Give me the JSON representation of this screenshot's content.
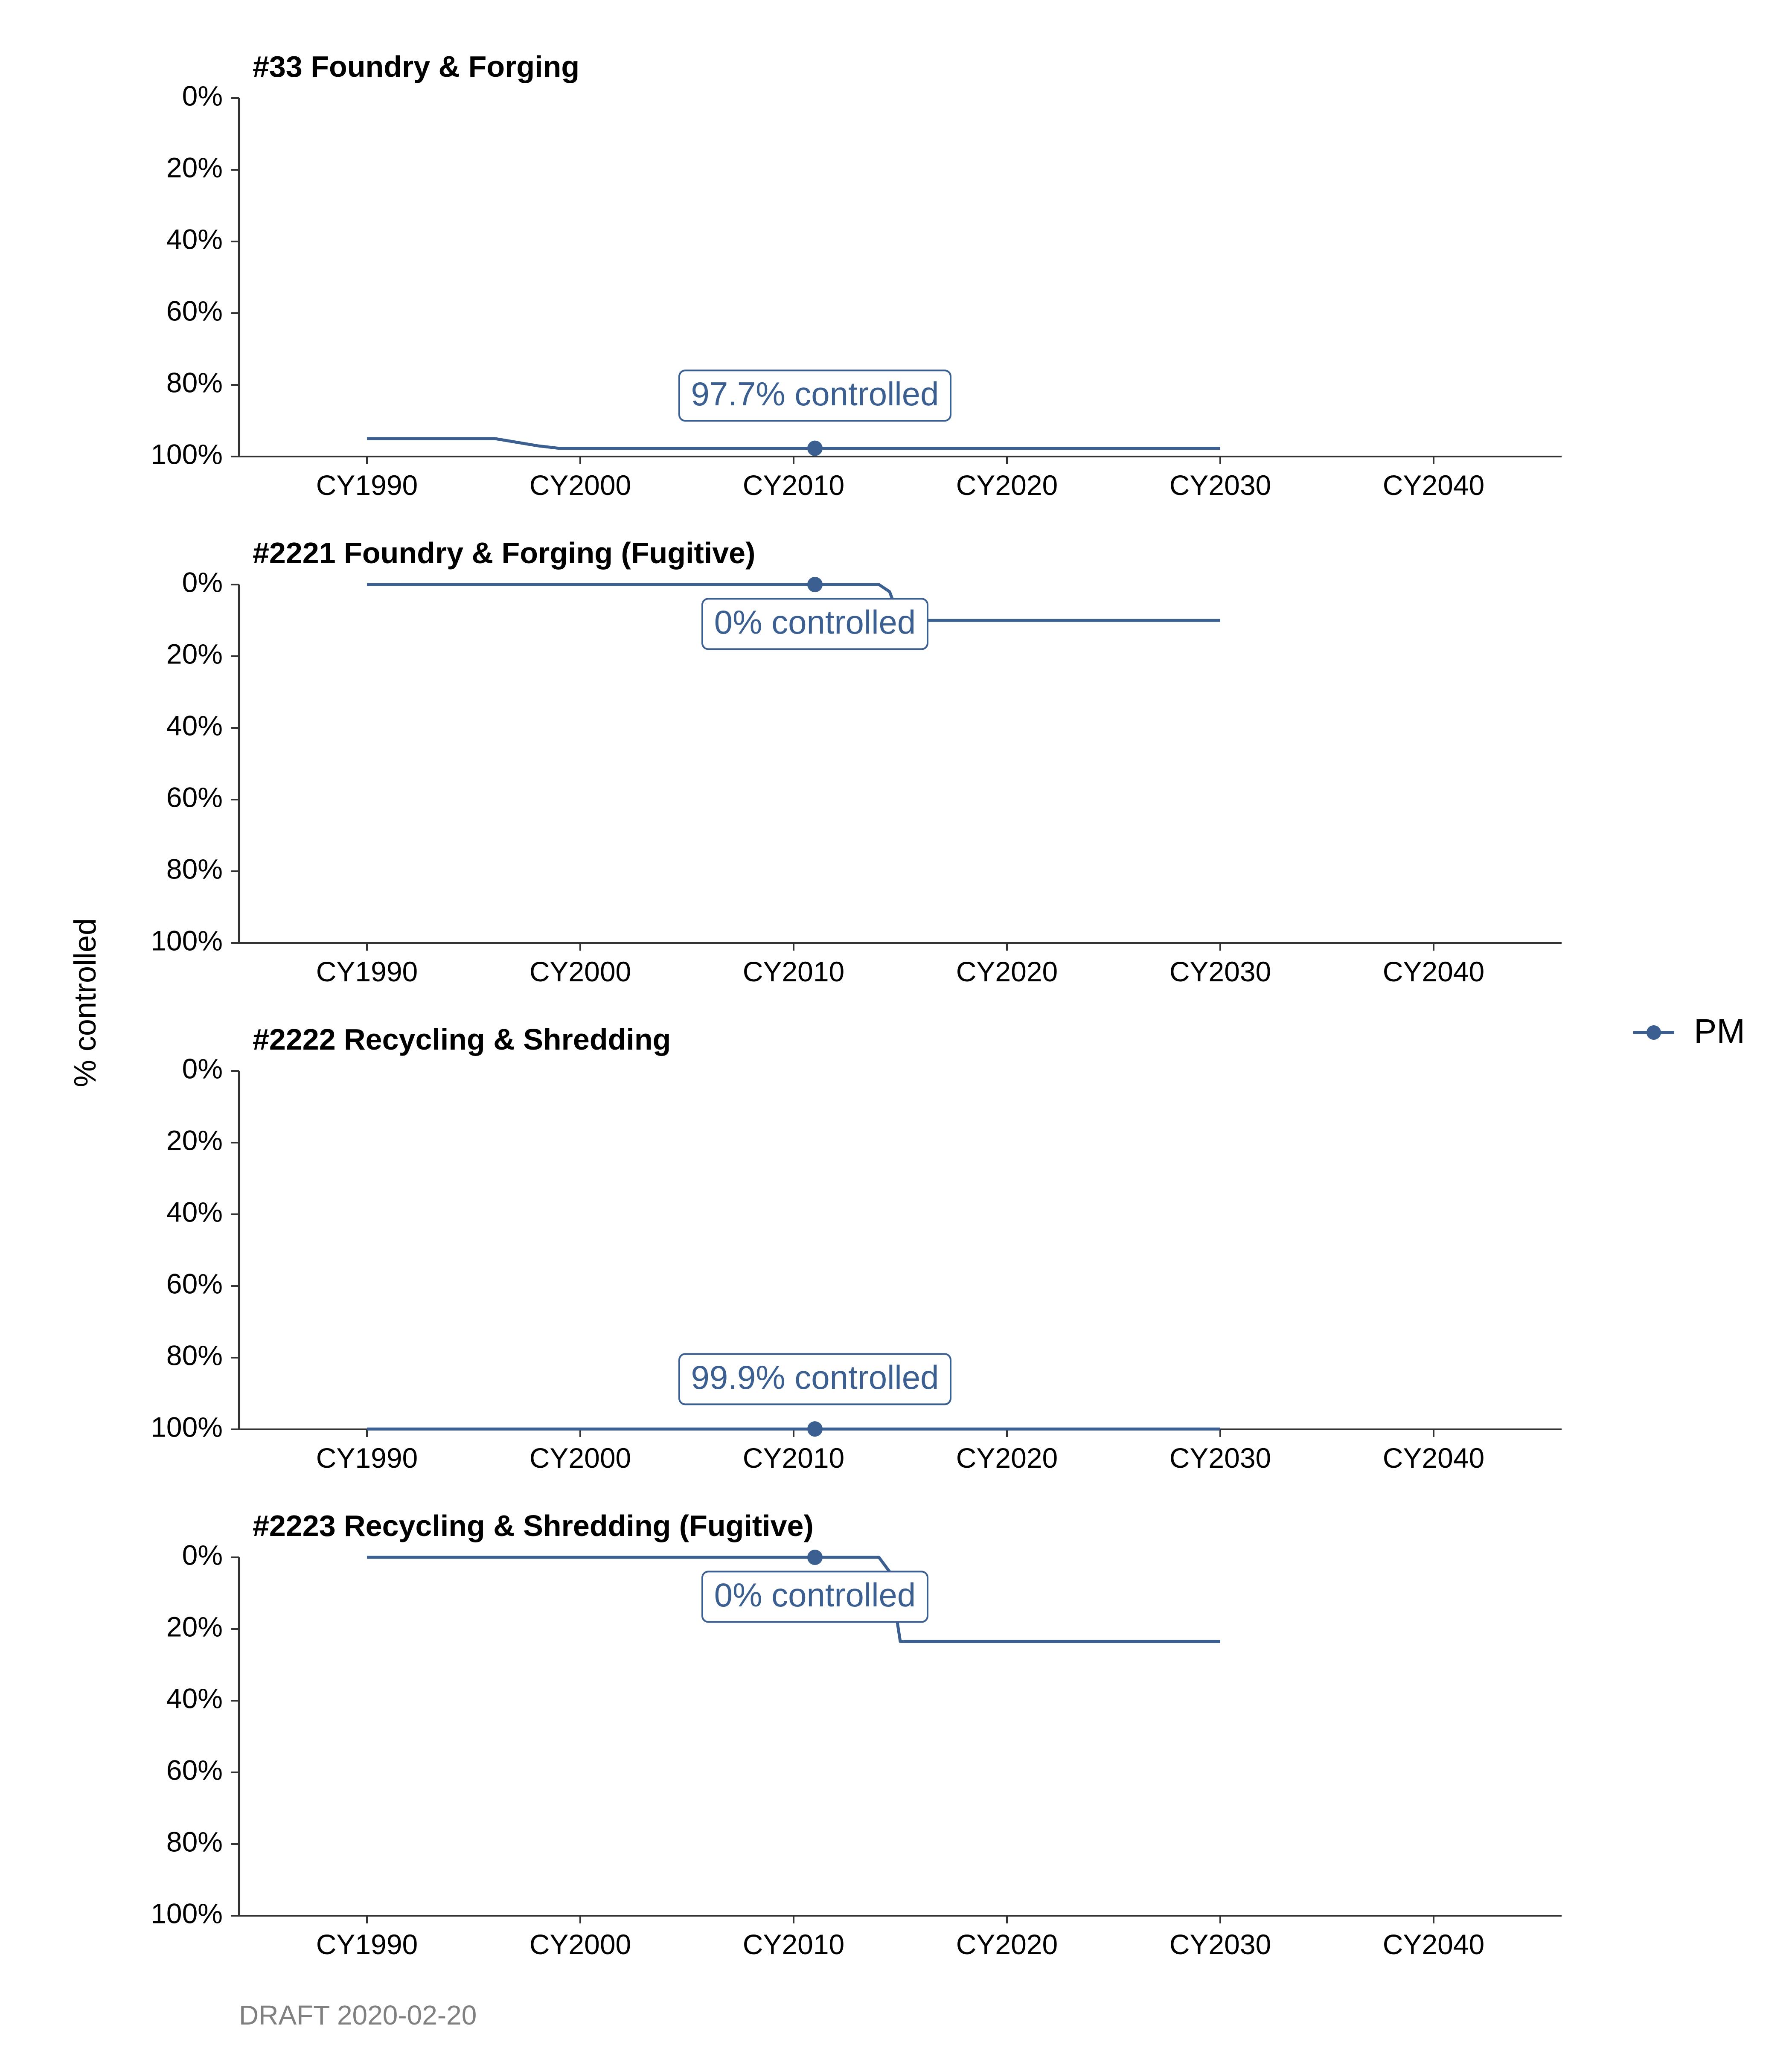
{
  "chart_data": {
    "type": "line",
    "ylabel": "% controlled",
    "caption": "DRAFT 2020-02-20",
    "legend": {
      "placement": "right",
      "entries": [
        "PM"
      ]
    },
    "colors": {
      "series": "#3b5f91",
      "axis": "#333333"
    },
    "x_ticks": [
      {
        "value": 1990,
        "label": "CY1990"
      },
      {
        "value": 2000,
        "label": "CY2000"
      },
      {
        "value": 2010,
        "label": "CY2010"
      },
      {
        "value": 2020,
        "label": "CY2020"
      },
      {
        "value": 2030,
        "label": "CY2030"
      },
      {
        "value": 2040,
        "label": "CY2040"
      }
    ],
    "y_ticks": [
      {
        "value": 0,
        "label": "0%"
      },
      {
        "value": 20,
        "label": "20%"
      },
      {
        "value": 40,
        "label": "40%"
      },
      {
        "value": 60,
        "label": "60%"
      },
      {
        "value": 80,
        "label": "80%"
      },
      {
        "value": 100,
        "label": "100%"
      }
    ],
    "xlim": [
      1984,
      2046
    ],
    "ylim": [
      0,
      100
    ],
    "y_reversed": true,
    "grid": false,
    "panels": [
      {
        "title": "#33 Foundry & Forging",
        "series": [
          {
            "name": "PM",
            "points": [
              [
                1990,
                95
              ],
              [
                1996,
                95
              ],
              [
                1998,
                97
              ],
              [
                1999,
                97.7
              ],
              [
                2030,
                97.7
              ]
            ]
          }
        ],
        "highlight": {
          "x": 2011,
          "y": 97.7
        },
        "annotation": {
          "text": "97.7% controlled",
          "x": 2011,
          "y": 83
        }
      },
      {
        "title": "#2221 Foundry & Forging (Fugitive)",
        "series": [
          {
            "name": "PM",
            "points": [
              [
                1990,
                0
              ],
              [
                2014,
                0
              ],
              [
                2014.5,
                2
              ],
              [
                2015,
                10
              ],
              [
                2030,
                10
              ]
            ]
          }
        ],
        "highlight": {
          "x": 2011,
          "y": 0
        },
        "annotation": {
          "text": "0% controlled",
          "x": 2011,
          "y": 11
        }
      },
      {
        "title": "#2222 Recycling & Shredding",
        "series": [
          {
            "name": "PM",
            "points": [
              [
                1990,
                99.9
              ],
              [
                2030,
                99.9
              ]
            ]
          }
        ],
        "highlight": {
          "x": 2011,
          "y": 99.9
        },
        "annotation": {
          "text": "99.9% controlled",
          "x": 2011,
          "y": 86
        }
      },
      {
        "title": "#2223 Recycling & Shredding (Fugitive)",
        "series": [
          {
            "name": "PM",
            "points": [
              [
                1990,
                0
              ],
              [
                2014,
                0
              ],
              [
                2014.5,
                4
              ],
              [
                2015,
                23.5
              ],
              [
                2030,
                23.5
              ]
            ]
          }
        ],
        "highlight": {
          "x": 2011,
          "y": 0
        },
        "annotation": {
          "text": "0% controlled",
          "x": 2011,
          "y": 11
        }
      }
    ]
  }
}
